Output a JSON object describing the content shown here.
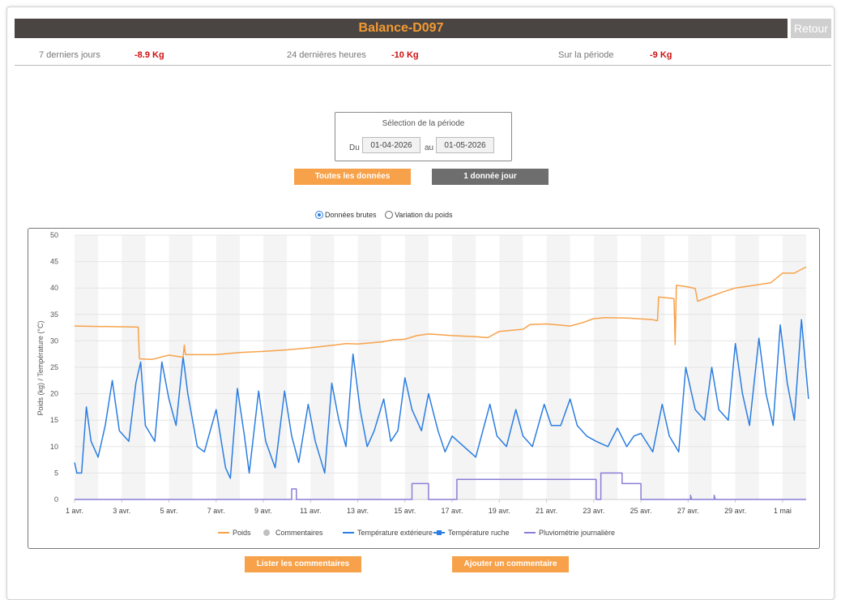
{
  "header": {
    "title": "Balance-D097",
    "back_label": "Retour"
  },
  "stats": [
    {
      "label": "7 derniers jours",
      "value": "-8.9 Kg"
    },
    {
      "label": "24 dernières heures",
      "value": "-10 Kg"
    },
    {
      "label": "Sur la période",
      "value": "-9 Kg"
    }
  ],
  "period": {
    "title": "Sélection de la période",
    "from_label": "Du",
    "from_value": "01-04-2026",
    "to_label": "au",
    "to_value": "01-05-2026"
  },
  "buttons": {
    "all_data": "Toutes les données",
    "one_per_day": "1 donnée jour"
  },
  "view_mode": {
    "raw_label": "Données brutes",
    "variation_label": "Variation du poids",
    "selected": "raw"
  },
  "footer_buttons": {
    "list_comments": "Lister les commentaires",
    "add_comment": "Ajouter un commentaire"
  },
  "colors": {
    "weight": "#f7a24a",
    "outside_temp": "#2a7de1",
    "hive_temp": "#2a7de1",
    "rain": "#8a7fd6",
    "comments": "#c0c0c0",
    "accent": "#f39a32",
    "negative": "#d01010"
  },
  "chart_data": {
    "type": "line",
    "ylabel": "Poids (kg) / Température (°C)",
    "ylim": [
      0,
      50
    ],
    "yticks": [
      "0",
      "5",
      "10",
      "15",
      "20",
      "25",
      "30",
      "35",
      "40",
      "45",
      "50"
    ],
    "xlim": [
      0,
      31
    ],
    "xticks": [
      {
        "x": 0,
        "label": "1 avr."
      },
      {
        "x": 2,
        "label": "3 avr."
      },
      {
        "x": 4,
        "label": "5 avr."
      },
      {
        "x": 6,
        "label": "7 avr."
      },
      {
        "x": 8,
        "label": "9 avr."
      },
      {
        "x": 10,
        "label": "11 avr."
      },
      {
        "x": 12,
        "label": "13 avr."
      },
      {
        "x": 14,
        "label": "15 avr."
      },
      {
        "x": 16,
        "label": "17 avr."
      },
      {
        "x": 18,
        "label": "19 avr."
      },
      {
        "x": 20,
        "label": "21 avr."
      },
      {
        "x": 22,
        "label": "23 avr."
      },
      {
        "x": 24,
        "label": "25 avr."
      },
      {
        "x": 26,
        "label": "27 avr."
      },
      {
        "x": 28,
        "label": "29 avr."
      },
      {
        "x": 30,
        "label": "1 mai"
      }
    ],
    "grid": true,
    "legend_position": "bottom",
    "series": [
      {
        "name": "Poids",
        "color": "#f7a24a",
        "points": [
          [
            0,
            32.8
          ],
          [
            2.7,
            32.6
          ],
          [
            2.75,
            26.6
          ],
          [
            3.3,
            26.5
          ],
          [
            4,
            27.3
          ],
          [
            4.6,
            26.9
          ],
          [
            4.65,
            29.2
          ],
          [
            4.7,
            27.4
          ],
          [
            6,
            27.4
          ],
          [
            7,
            27.8
          ],
          [
            8,
            28
          ],
          [
            9,
            28.3
          ],
          [
            10,
            28.7
          ],
          [
            11,
            29.2
          ],
          [
            11.5,
            29.5
          ],
          [
            12,
            29.4
          ],
          [
            13,
            29.8
          ],
          [
            13.5,
            30.2
          ],
          [
            14,
            30.3
          ],
          [
            14.5,
            31.0
          ],
          [
            15,
            31.3
          ],
          [
            16,
            31.0
          ],
          [
            17,
            30.8
          ],
          [
            17.5,
            30.6
          ],
          [
            18,
            31.8
          ],
          [
            19,
            32.2
          ],
          [
            19.3,
            33.1
          ],
          [
            20,
            33.2
          ],
          [
            21,
            32.8
          ],
          [
            21.5,
            33.4
          ],
          [
            22,
            34.2
          ],
          [
            22.5,
            34.4
          ],
          [
            23.5,
            34.3
          ],
          [
            24.5,
            34.0
          ],
          [
            24.7,
            33.8
          ],
          [
            24.75,
            38.3
          ],
          [
            25.4,
            38.0
          ],
          [
            25.45,
            29.3
          ],
          [
            25.5,
            40.5
          ],
          [
            26,
            40.2
          ],
          [
            26.3,
            39.9
          ],
          [
            26.4,
            37.5
          ],
          [
            27,
            38.5
          ],
          [
            27.5,
            39.3
          ],
          [
            28,
            40.0
          ],
          [
            28.8,
            40.5
          ],
          [
            29.5,
            41.0
          ],
          [
            30,
            42.8
          ],
          [
            30.5,
            42.8
          ],
          [
            31,
            44.0
          ]
        ]
      },
      {
        "name": "Température extérieure",
        "color": "#2a7de1",
        "points": [
          [
            0,
            7
          ],
          [
            0.1,
            5
          ],
          [
            0.3,
            5
          ],
          [
            0.5,
            17.5
          ],
          [
            0.7,
            11
          ],
          [
            1,
            8
          ],
          [
            1.3,
            14
          ],
          [
            1.6,
            22.5
          ],
          [
            1.9,
            13
          ],
          [
            2.3,
            11
          ],
          [
            2.6,
            22
          ],
          [
            2.8,
            26
          ],
          [
            3,
            14
          ],
          [
            3.4,
            11
          ],
          [
            3.7,
            26
          ],
          [
            4,
            19
          ],
          [
            4.3,
            14
          ],
          [
            4.6,
            27
          ],
          [
            4.8,
            20
          ],
          [
            5.2,
            10
          ],
          [
            5.5,
            9
          ],
          [
            6,
            17
          ],
          [
            6.4,
            6
          ],
          [
            6.6,
            4
          ],
          [
            6.9,
            21
          ],
          [
            7.2,
            12
          ],
          [
            7.4,
            5
          ],
          [
            7.8,
            20.5
          ],
          [
            8.1,
            11
          ],
          [
            8.5,
            6
          ],
          [
            8.9,
            20.5
          ],
          [
            9.2,
            12
          ],
          [
            9.5,
            7
          ],
          [
            9.9,
            18
          ],
          [
            10.2,
            11
          ],
          [
            10.6,
            5
          ],
          [
            10.9,
            22
          ],
          [
            11.2,
            15
          ],
          [
            11.5,
            10
          ],
          [
            11.8,
            27.5
          ],
          [
            12.1,
            17
          ],
          [
            12.4,
            10
          ],
          [
            12.7,
            13
          ],
          [
            13.1,
            19
          ],
          [
            13.4,
            11
          ],
          [
            13.7,
            13
          ],
          [
            14,
            23
          ],
          [
            14.3,
            17
          ],
          [
            14.7,
            13
          ],
          [
            15,
            20
          ],
          [
            15.4,
            13
          ],
          [
            15.7,
            9
          ],
          [
            16,
            12
          ],
          [
            16.5,
            10
          ],
          [
            17,
            8
          ],
          [
            17.6,
            18
          ],
          [
            17.9,
            12
          ],
          [
            18.3,
            10
          ],
          [
            18.7,
            17
          ],
          [
            19,
            12
          ],
          [
            19.4,
            10
          ],
          [
            19.9,
            18
          ],
          [
            20.2,
            14
          ],
          [
            20.6,
            14
          ],
          [
            21,
            19
          ],
          [
            21.3,
            14
          ],
          [
            21.7,
            12
          ],
          [
            22.1,
            11
          ],
          [
            22.6,
            10
          ],
          [
            23,
            13.5
          ],
          [
            23.4,
            10
          ],
          [
            23.7,
            12
          ],
          [
            24,
            12.5
          ],
          [
            24.5,
            9
          ],
          [
            24.9,
            18
          ],
          [
            25.2,
            12
          ],
          [
            25.6,
            9
          ],
          [
            25.9,
            25
          ],
          [
            26.3,
            17
          ],
          [
            26.7,
            15
          ],
          [
            27,
            25
          ],
          [
            27.3,
            17
          ],
          [
            27.7,
            15
          ],
          [
            28,
            29.5
          ],
          [
            28.3,
            20
          ],
          [
            28.6,
            14
          ],
          [
            29,
            30.5
          ],
          [
            29.3,
            20
          ],
          [
            29.6,
            14
          ],
          [
            29.9,
            33
          ],
          [
            30.2,
            22
          ],
          [
            30.5,
            15
          ],
          [
            30.8,
            34
          ],
          [
            31,
            24
          ],
          [
            31.1,
            19
          ]
        ]
      },
      {
        "name": "Pluviométrie journalière",
        "color": "#8a7fd6",
        "points": [
          [
            0,
            0
          ],
          [
            9.2,
            0
          ],
          [
            9.2,
            2
          ],
          [
            9.4,
            2
          ],
          [
            9.4,
            0
          ],
          [
            14.3,
            0
          ],
          [
            14.3,
            3
          ],
          [
            15,
            3
          ],
          [
            15,
            0
          ],
          [
            16.2,
            0
          ],
          [
            16.2,
            3.8
          ],
          [
            22.1,
            3.8
          ],
          [
            22.1,
            0
          ],
          [
            22.3,
            0
          ],
          [
            22.3,
            5
          ],
          [
            23.2,
            5
          ],
          [
            23.2,
            3
          ],
          [
            24,
            3
          ],
          [
            24,
            0
          ],
          [
            26.1,
            0
          ],
          [
            26.1,
            0.8
          ],
          [
            26.15,
            0
          ],
          [
            27.1,
            0
          ],
          [
            27.1,
            0.8
          ],
          [
            27.15,
            0
          ],
          [
            31,
            0
          ]
        ]
      }
    ],
    "legend": [
      {
        "name": "Poids",
        "color": "#f7a24a",
        "marker": "line"
      },
      {
        "name": "Commentaires",
        "color": "#c0c0c0",
        "marker": "dot"
      },
      {
        "name": "Température extérieure",
        "color": "#2a7de1",
        "marker": "line"
      },
      {
        "name": "Température ruche",
        "color": "#2a7de1",
        "marker": "square"
      },
      {
        "name": "Pluviométrie journalière",
        "color": "#8a7fd6",
        "marker": "line"
      }
    ]
  }
}
